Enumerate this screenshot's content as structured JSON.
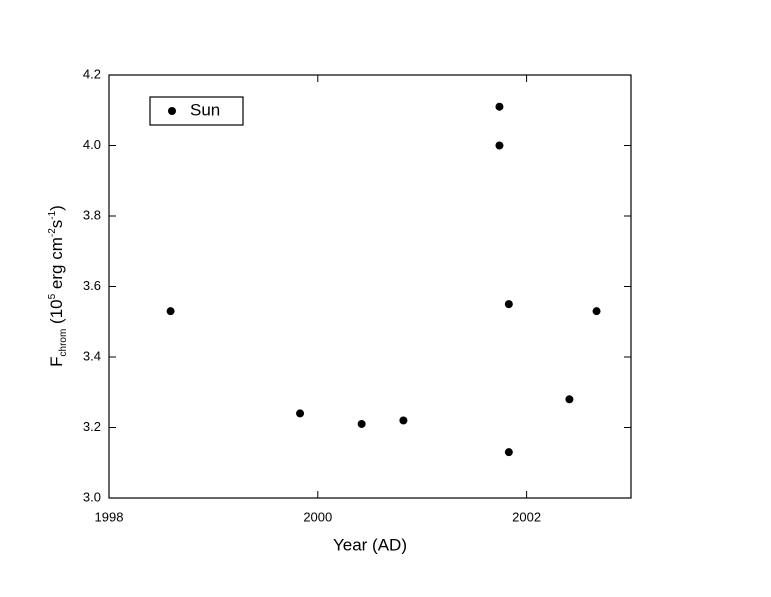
{
  "chart_data": {
    "type": "scatter",
    "x_label": "Year (AD)",
    "y_label": [
      {
        "text": "F"
      },
      {
        "text": "chrom",
        "script": "sub"
      },
      {
        "text": " (10"
      },
      {
        "text": "5",
        "script": "sup"
      },
      {
        "text": " erg cm"
      },
      {
        "text": "-2",
        "script": "sup"
      },
      {
        "text": "s"
      },
      {
        "text": "-1",
        "script": "sup"
      },
      {
        "text": ")"
      }
    ],
    "series": [
      {
        "name": "Sun",
        "color": "#000000",
        "x": [
          1998.59,
          1999.83,
          2000.42,
          2000.82,
          2001.74,
          2001.74,
          2001.83,
          2001.83,
          2002.41,
          2002.67
        ],
        "values": [
          3.53,
          3.24,
          3.21,
          3.22,
          4.11,
          4.0,
          3.55,
          3.13,
          3.28,
          3.53
        ]
      }
    ],
    "xlim": [
      1998,
      2003
    ],
    "xticks": [
      1998,
      2000,
      2002
    ],
    "ylim": [
      3.0,
      4.2
    ],
    "yticks": [
      {
        "value": 3,
        "label": "3.0"
      },
      3.2,
      3.4,
      3.6,
      3.8,
      {
        "value": 4,
        "label": "4.0"
      },
      4.2
    ],
    "legend": "upper left",
    "grid": false
  }
}
